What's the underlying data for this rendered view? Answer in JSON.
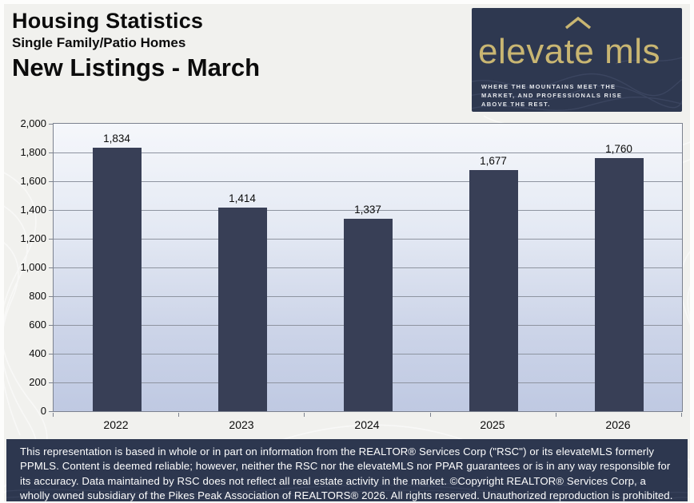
{
  "header": {
    "title": "Housing Statistics",
    "subtitle": "Single Family/Patio Homes",
    "chart_title": "New Listings - March"
  },
  "logo": {
    "wordmark": "elevate mls",
    "tagline_lines": [
      "WHERE THE MOUNTAINS MEET THE",
      "MARKET, AND PROFESSIONALS RISE",
      "ABOVE THE REST."
    ],
    "panel_color": "#2e3850",
    "gold_color": "#c9b672"
  },
  "chart_data": {
    "type": "bar",
    "title": "New Listings - March",
    "categories": [
      "2022",
      "2023",
      "2024",
      "2025",
      "2026"
    ],
    "values": [
      1834,
      1414,
      1337,
      1677,
      1760
    ],
    "value_labels": [
      "1,834",
      "1,414",
      "1,337",
      "1,677",
      "1,760"
    ],
    "xlabel": "",
    "ylabel": "",
    "ylim": [
      0,
      2000
    ],
    "ytick_step": 200,
    "ytick_labels": [
      "0",
      "200",
      "400",
      "600",
      "800",
      "1,000",
      "1,200",
      "1,400",
      "1,600",
      "1,800",
      "2,000"
    ],
    "grid": true,
    "legend": false,
    "bar_color": "#383f56",
    "plot_bg_top": "#f5f7fb",
    "plot_bg_bottom": "#bfc9e2"
  },
  "footer": {
    "disclaimer": "This representation is based in whole or in part on information from the REALTOR® Services Corp (\"RSC\") or its elevateMLS formerly PPMLS. Content is deemed reliable; however, neither the RSC nor the elevateMLS nor PPAR guarantees or is in any way responsible for its accuracy. Data maintained by RSC does not reflect all real estate activity in the market. ©Copyright REALTOR® Services Corp, a wholly owned subsidiary of the Pikes Peak Association of REALTORS® 2026. All rights reserved. Unauthorized reproduction is prohibited."
  }
}
